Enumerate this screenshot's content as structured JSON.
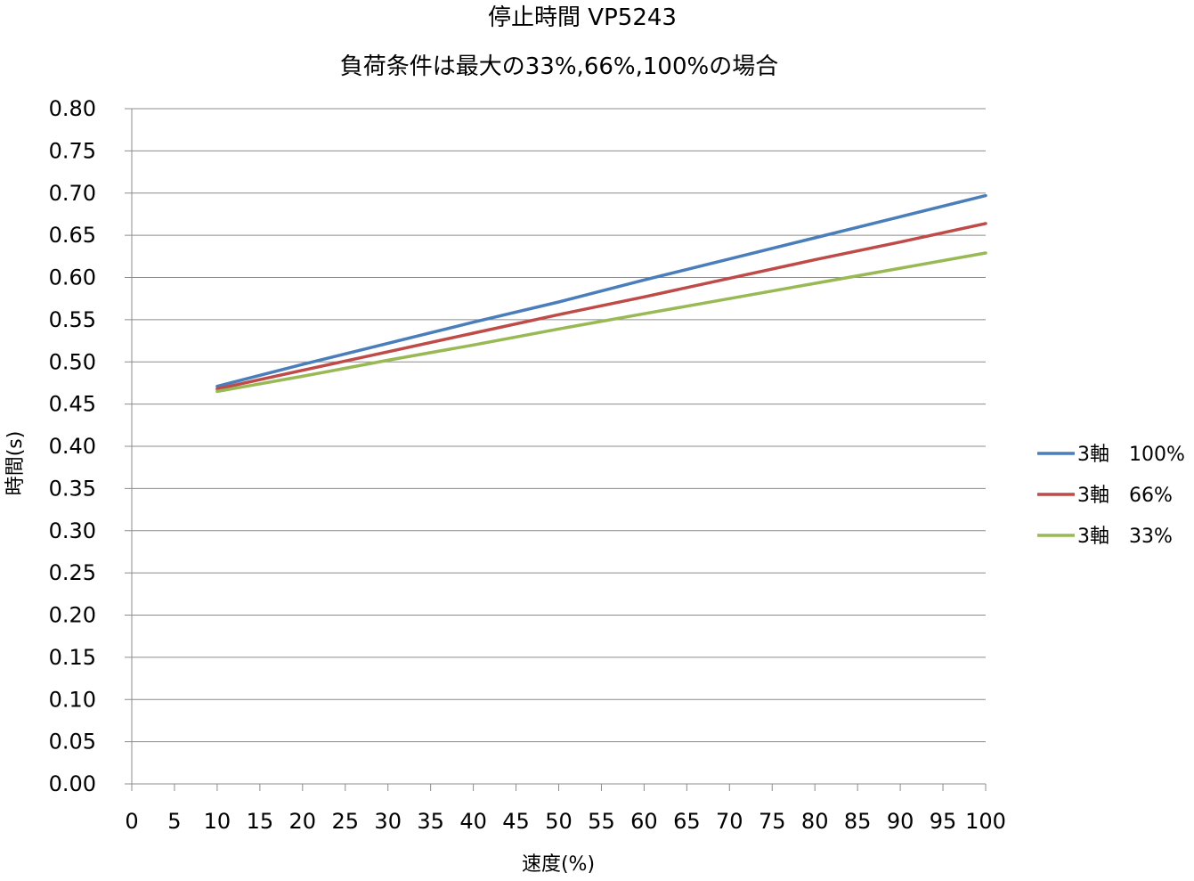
{
  "chart_data": {
    "type": "line",
    "title": "停止時間 VP5243",
    "subtitle": "負荷条件は最大の33%,66%,100%の場合",
    "xlabel": "速度(%)",
    "ylabel": "時間(s)",
    "xlim": [
      0,
      100
    ],
    "ylim": [
      0,
      0.8
    ],
    "x_ticks": [
      "0",
      "5",
      "10",
      "15",
      "20",
      "25",
      "30",
      "35",
      "40",
      "45",
      "50",
      "55",
      "60",
      "65",
      "70",
      "75",
      "80",
      "85",
      "90",
      "95",
      "100"
    ],
    "y_ticks": [
      "0.00",
      "0.05",
      "0.10",
      "0.15",
      "0.20",
      "0.25",
      "0.30",
      "0.35",
      "0.40",
      "0.45",
      "0.50",
      "0.55",
      "0.60",
      "0.65",
      "0.70",
      "0.75",
      "0.80"
    ],
    "grid": "horizontal",
    "legend_position": "right",
    "x": [
      10,
      20,
      30,
      40,
      50,
      60,
      70,
      80,
      90,
      100
    ],
    "series": [
      {
        "name": "3軸　100%",
        "color": "#4a7ebb",
        "values": [
          0.471,
          0.497,
          0.522,
          0.547,
          0.571,
          0.597,
          0.622,
          0.647,
          0.672,
          0.697
        ]
      },
      {
        "name": "3軸　66%",
        "color": "#be4b48",
        "values": [
          0.468,
          0.49,
          0.512,
          0.534,
          0.556,
          0.577,
          0.599,
          0.621,
          0.642,
          0.664
        ]
      },
      {
        "name": "3軸　33%",
        "color": "#98b954",
        "values": [
          0.465,
          0.483,
          0.502,
          0.52,
          0.539,
          0.557,
          0.575,
          0.593,
          0.611,
          0.629
        ]
      }
    ]
  }
}
